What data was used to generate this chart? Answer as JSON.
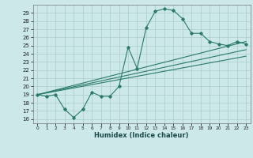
{
  "xlabel": "Humidex (Indice chaleur)",
  "bg_color": "#cce8e8",
  "grid_color": "#aacccc",
  "line_color": "#2a7a6a",
  "xlim": [
    -0.5,
    23.5
  ],
  "ylim": [
    15.5,
    30.0
  ],
  "yticks": [
    16,
    17,
    18,
    19,
    20,
    21,
    22,
    23,
    24,
    25,
    26,
    27,
    28,
    29
  ],
  "xticks": [
    0,
    1,
    2,
    3,
    4,
    5,
    6,
    7,
    8,
    9,
    10,
    11,
    12,
    13,
    14,
    15,
    16,
    17,
    18,
    19,
    20,
    21,
    22,
    23
  ],
  "curve1_x": [
    0,
    1,
    2,
    3,
    4,
    5,
    6,
    7,
    8,
    9,
    10,
    11,
    12,
    13,
    14,
    15,
    16,
    17,
    18,
    19,
    20,
    21,
    22,
    23
  ],
  "curve1_y": [
    19.0,
    18.8,
    19.0,
    17.2,
    16.2,
    17.2,
    19.3,
    18.8,
    18.8,
    20.0,
    24.8,
    22.2,
    27.2,
    29.2,
    29.5,
    29.3,
    28.3,
    26.5,
    26.5,
    25.5,
    25.2,
    25.0,
    25.5,
    25.2
  ],
  "curve2_x": [
    0,
    23
  ],
  "curve2_y": [
    19.0,
    25.5
  ],
  "curve3_x": [
    0,
    23
  ],
  "curve3_y": [
    19.0,
    24.5
  ],
  "curve4_x": [
    0,
    23
  ],
  "curve4_y": [
    19.0,
    23.7
  ]
}
